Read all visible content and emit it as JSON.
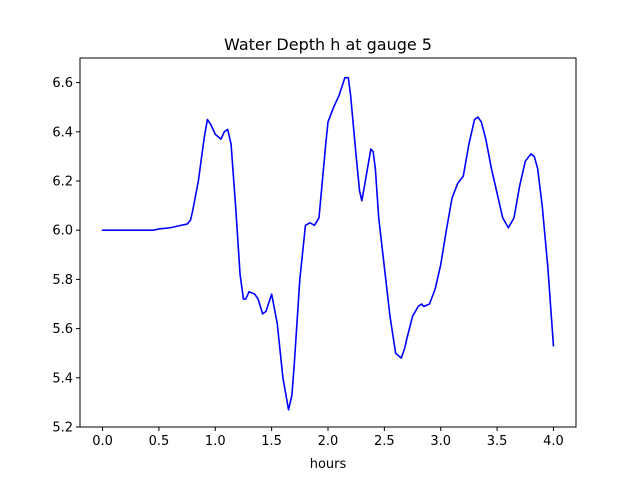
{
  "chart_data": {
    "type": "line",
    "title": "Water Depth h at gauge 5",
    "xlabel": "hours",
    "ylabel": "",
    "xlim": [
      -0.2,
      4.2
    ],
    "ylim": [
      5.2,
      6.7
    ],
    "xticks": [
      0.0,
      0.5,
      1.0,
      1.5,
      2.0,
      2.5,
      3.0,
      3.5,
      4.0
    ],
    "xtick_labels": [
      "0.0",
      "0.5",
      "1.0",
      "1.5",
      "2.0",
      "2.5",
      "3.0",
      "3.5",
      "4.0"
    ],
    "yticks": [
      5.2,
      5.4,
      5.6,
      5.8,
      6.0,
      6.2,
      6.4,
      6.6
    ],
    "ytick_labels": [
      "5.2",
      "5.4",
      "5.6",
      "5.8",
      "6.0",
      "6.2",
      "6.4",
      "6.6"
    ],
    "grid": false,
    "series": [
      {
        "color": "#0000ff",
        "x": [
          0.0,
          0.1,
          0.2,
          0.3,
          0.4,
          0.45,
          0.5,
          0.6,
          0.7,
          0.75,
          0.78,
          0.8,
          0.85,
          0.9,
          0.93,
          0.96,
          1.0,
          1.05,
          1.08,
          1.11,
          1.14,
          1.18,
          1.22,
          1.25,
          1.27,
          1.3,
          1.35,
          1.38,
          1.42,
          1.45,
          1.5,
          1.55,
          1.6,
          1.65,
          1.68,
          1.7,
          1.75,
          1.8,
          1.84,
          1.88,
          1.92,
          1.95,
          1.98,
          2.0,
          2.05,
          2.1,
          2.15,
          2.18,
          2.2,
          2.25,
          2.28,
          2.3,
          2.32,
          2.35,
          2.38,
          2.4,
          2.42,
          2.45,
          2.5,
          2.55,
          2.6,
          2.65,
          2.68,
          2.7,
          2.75,
          2.8,
          2.83,
          2.85,
          2.9,
          2.95,
          3.0,
          3.05,
          3.1,
          3.15,
          3.2,
          3.25,
          3.3,
          3.33,
          3.36,
          3.4,
          3.45,
          3.5,
          3.55,
          3.6,
          3.65,
          3.7,
          3.75,
          3.8,
          3.83,
          3.86,
          3.9,
          3.95,
          4.0
        ],
        "y": [
          6.0,
          6.0,
          6.0,
          6.0,
          6.0,
          6.0,
          6.005,
          6.01,
          6.02,
          6.025,
          6.04,
          6.08,
          6.2,
          6.37,
          6.45,
          6.43,
          6.39,
          6.37,
          6.4,
          6.41,
          6.35,
          6.1,
          5.82,
          5.72,
          5.72,
          5.75,
          5.74,
          5.72,
          5.66,
          5.67,
          5.74,
          5.62,
          5.4,
          5.27,
          5.33,
          5.45,
          5.8,
          6.02,
          6.03,
          6.02,
          6.05,
          6.2,
          6.35,
          6.44,
          6.5,
          6.55,
          6.62,
          6.62,
          6.55,
          6.3,
          6.16,
          6.12,
          6.17,
          6.25,
          6.33,
          6.32,
          6.25,
          6.05,
          5.85,
          5.65,
          5.5,
          5.48,
          5.52,
          5.56,
          5.65,
          5.69,
          5.7,
          5.69,
          5.7,
          5.76,
          5.86,
          6.0,
          6.13,
          6.19,
          6.22,
          6.35,
          6.45,
          6.46,
          6.44,
          6.37,
          6.25,
          6.15,
          6.05,
          6.01,
          6.05,
          6.18,
          6.28,
          6.31,
          6.3,
          6.25,
          6.1,
          5.85,
          5.53
        ]
      }
    ]
  }
}
